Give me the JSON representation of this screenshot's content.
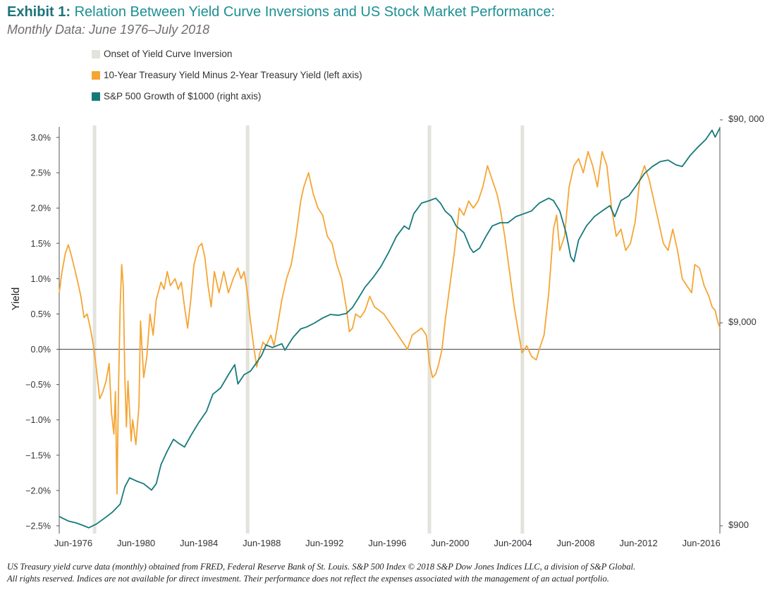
{
  "title_prefix": "Exhibit 1:",
  "title_text": "Relation Between Yield Curve Inversions and US Stock Market Performance:",
  "subtitle": "Monthly Data: June 1976–July 2018",
  "footnote_line1": "US Treasury yield curve data (monthly) obtained from FRED, Federal Reserve Bank of St. Louis. S&P 500 Index © 2018 S&P Dow Jones Indices LLC, a division of S&P Global.",
  "footnote_line2": "All rights reserved. Indices are not available for direct investment. Their performance does not reflect the expenses associated with the management of an actual portfolio.",
  "colors": {
    "inversion": "#e3e3dc",
    "spread": "#f5a534",
    "sp500": "#15797c",
    "axis": "#555555",
    "title": "#1d8f93"
  },
  "chart_data": {
    "type": "line",
    "ylabel": "Yield",
    "x_range": [
      1976.42,
      2018.5
    ],
    "x_tick_labels": [
      {
        "x": 1976.42,
        "label": "Jun-1976"
      },
      {
        "x": 1980.42,
        "label": "Jun-1980"
      },
      {
        "x": 1984.42,
        "label": "Jun-1984"
      },
      {
        "x": 1988.42,
        "label": "Jun-1988"
      },
      {
        "x": 1992.42,
        "label": "Jun-1992"
      },
      {
        "x": 1996.42,
        "label": "Jun-1996"
      },
      {
        "x": 2000.42,
        "label": "Jun-2000"
      },
      {
        "x": 2004.42,
        "label": "Jun-2004"
      },
      {
        "x": 2008.42,
        "label": "Jun-2008"
      },
      {
        "x": 2012.42,
        "label": "Jun-2012"
      },
      {
        "x": 2016.42,
        "label": "Jun-2016"
      }
    ],
    "y_left_range": [
      -2.5,
      3.0
    ],
    "y_left_ticks": [
      {
        "v": 3.0,
        "label": "3.0%"
      },
      {
        "v": 2.5,
        "label": "2.5%"
      },
      {
        "v": 2.0,
        "label": "2.0%"
      },
      {
        "v": 1.5,
        "label": "1.5%"
      },
      {
        "v": 1.0,
        "label": "1.0%"
      },
      {
        "v": 0.5,
        "label": "0.5%"
      },
      {
        "v": 0.0,
        "label": "0.0%"
      },
      {
        "v": -0.5,
        "label": "−0.5%"
      },
      {
        "v": -1.0,
        "label": "−1.0%"
      },
      {
        "v": -1.5,
        "label": "−1.5%"
      },
      {
        "v": -2.0,
        "label": "−2.0%"
      },
      {
        "v": -2.5,
        "label": "−2.5%"
      }
    ],
    "y_right_scale": "log",
    "y_right_range": [
      900,
      90000
    ],
    "y_right_ticks": [
      {
        "v": 90000,
        "label": "$90, 000"
      },
      {
        "v": 9000,
        "label": "$9,000"
      },
      {
        "v": 900,
        "label": "$900"
      }
    ],
    "zero_line": 0,
    "inversions": [
      1978.67,
      1988.42,
      2000.0,
      2005.92
    ],
    "series": [
      {
        "name": "Onset of Yield Curve Inversion",
        "kind": "vertical-bands"
      },
      {
        "name": "10-Year Treasury Yield Minus 2-Year Treasury Yield (left axis)",
        "axis": "left",
        "points": [
          [
            1976.42,
            0.8
          ],
          [
            1976.6,
            1.1
          ],
          [
            1976.8,
            1.35
          ],
          [
            1977.0,
            1.48
          ],
          [
            1977.2,
            1.32
          ],
          [
            1977.5,
            1.05
          ],
          [
            1977.8,
            0.75
          ],
          [
            1978.0,
            0.45
          ],
          [
            1978.2,
            0.5
          ],
          [
            1978.4,
            0.3
          ],
          [
            1978.6,
            0.05
          ],
          [
            1978.8,
            -0.3
          ],
          [
            1979.0,
            -0.7
          ],
          [
            1979.2,
            -0.6
          ],
          [
            1979.4,
            -0.45
          ],
          [
            1979.6,
            -0.2
          ],
          [
            1979.75,
            -0.9
          ],
          [
            1979.9,
            -1.2
          ],
          [
            1980.0,
            -0.6
          ],
          [
            1980.1,
            -2.05
          ],
          [
            1980.2,
            -0.5
          ],
          [
            1980.3,
            0.6
          ],
          [
            1980.4,
            1.2
          ],
          [
            1980.5,
            0.9
          ],
          [
            1980.6,
            -0.4
          ],
          [
            1980.7,
            -1.1
          ],
          [
            1980.8,
            -0.45
          ],
          [
            1981.0,
            -1.3
          ],
          [
            1981.1,
            -1.0
          ],
          [
            1981.3,
            -1.35
          ],
          [
            1981.5,
            -0.8
          ],
          [
            1981.6,
            0.4
          ],
          [
            1981.8,
            -0.4
          ],
          [
            1982.0,
            -0.1
          ],
          [
            1982.2,
            0.5
          ],
          [
            1982.4,
            0.2
          ],
          [
            1982.6,
            0.7
          ],
          [
            1982.9,
            0.95
          ],
          [
            1983.1,
            0.85
          ],
          [
            1983.3,
            1.1
          ],
          [
            1983.5,
            0.9
          ],
          [
            1983.8,
            1.0
          ],
          [
            1984.0,
            0.85
          ],
          [
            1984.2,
            0.95
          ],
          [
            1984.4,
            0.6
          ],
          [
            1984.6,
            0.3
          ],
          [
            1984.8,
            0.7
          ],
          [
            1985.0,
            1.2
          ],
          [
            1985.3,
            1.45
          ],
          [
            1985.5,
            1.5
          ],
          [
            1985.7,
            1.3
          ],
          [
            1985.9,
            0.9
          ],
          [
            1986.1,
            0.6
          ],
          [
            1986.3,
            1.1
          ],
          [
            1986.6,
            0.8
          ],
          [
            1986.9,
            1.1
          ],
          [
            1987.2,
            0.8
          ],
          [
            1987.5,
            1.0
          ],
          [
            1987.8,
            1.15
          ],
          [
            1988.0,
            1.0
          ],
          [
            1988.2,
            1.1
          ],
          [
            1988.4,
            0.8
          ],
          [
            1988.6,
            0.4
          ],
          [
            1988.8,
            0.05
          ],
          [
            1989.0,
            -0.25
          ],
          [
            1989.2,
            -0.05
          ],
          [
            1989.4,
            0.1
          ],
          [
            1989.6,
            0.05
          ],
          [
            1989.9,
            0.2
          ],
          [
            1990.1,
            0.05
          ],
          [
            1990.3,
            0.3
          ],
          [
            1990.6,
            0.7
          ],
          [
            1990.9,
            1.0
          ],
          [
            1991.2,
            1.2
          ],
          [
            1991.5,
            1.6
          ],
          [
            1991.8,
            2.1
          ],
          [
            1992.0,
            2.3
          ],
          [
            1992.3,
            2.5
          ],
          [
            1992.6,
            2.2
          ],
          [
            1992.9,
            2.0
          ],
          [
            1993.2,
            1.9
          ],
          [
            1993.5,
            1.6
          ],
          [
            1993.8,
            1.5
          ],
          [
            1994.1,
            1.2
          ],
          [
            1994.4,
            1.0
          ],
          [
            1994.7,
            0.6
          ],
          [
            1994.9,
            0.25
          ],
          [
            1995.1,
            0.3
          ],
          [
            1995.3,
            0.5
          ],
          [
            1995.6,
            0.45
          ],
          [
            1995.9,
            0.55
          ],
          [
            1996.2,
            0.75
          ],
          [
            1996.5,
            0.6
          ],
          [
            1996.8,
            0.55
          ],
          [
            1997.1,
            0.5
          ],
          [
            1997.4,
            0.4
          ],
          [
            1997.7,
            0.3
          ],
          [
            1998.0,
            0.2
          ],
          [
            1998.3,
            0.1
          ],
          [
            1998.6,
            0.0
          ],
          [
            1998.9,
            0.2
          ],
          [
            1999.2,
            0.25
          ],
          [
            1999.5,
            0.3
          ],
          [
            1999.8,
            0.2
          ],
          [
            2000.0,
            -0.2
          ],
          [
            2000.2,
            -0.4
          ],
          [
            2000.4,
            -0.35
          ],
          [
            2000.6,
            -0.2
          ],
          [
            2000.8,
            0.0
          ],
          [
            2001.0,
            0.4
          ],
          [
            2001.3,
            0.9
          ],
          [
            2001.6,
            1.4
          ],
          [
            2001.9,
            2.0
          ],
          [
            2002.2,
            1.9
          ],
          [
            2002.5,
            2.1
          ],
          [
            2002.8,
            2.0
          ],
          [
            2003.1,
            2.1
          ],
          [
            2003.4,
            2.3
          ],
          [
            2003.7,
            2.6
          ],
          [
            2004.0,
            2.4
          ],
          [
            2004.3,
            2.2
          ],
          [
            2004.5,
            2.0
          ],
          [
            2004.8,
            1.6
          ],
          [
            2005.1,
            1.1
          ],
          [
            2005.4,
            0.6
          ],
          [
            2005.7,
            0.2
          ],
          [
            2005.9,
            -0.05
          ],
          [
            2006.2,
            0.05
          ],
          [
            2006.5,
            -0.1
          ],
          [
            2006.8,
            -0.15
          ],
          [
            2007.0,
            0.0
          ],
          [
            2007.3,
            0.2
          ],
          [
            2007.6,
            0.8
          ],
          [
            2007.9,
            1.7
          ],
          [
            2008.1,
            1.9
          ],
          [
            2008.3,
            1.4
          ],
          [
            2008.6,
            1.6
          ],
          [
            2008.9,
            2.3
          ],
          [
            2009.2,
            2.6
          ],
          [
            2009.5,
            2.7
          ],
          [
            2009.8,
            2.5
          ],
          [
            2010.1,
            2.8
          ],
          [
            2010.4,
            2.6
          ],
          [
            2010.7,
            2.3
          ],
          [
            2011.0,
            2.8
          ],
          [
            2011.3,
            2.6
          ],
          [
            2011.6,
            2.0
          ],
          [
            2011.9,
            1.6
          ],
          [
            2012.2,
            1.7
          ],
          [
            2012.5,
            1.4
          ],
          [
            2012.8,
            1.5
          ],
          [
            2013.1,
            1.8
          ],
          [
            2013.4,
            2.4
          ],
          [
            2013.7,
            2.6
          ],
          [
            2014.0,
            2.4
          ],
          [
            2014.3,
            2.1
          ],
          [
            2014.6,
            1.8
          ],
          [
            2014.9,
            1.5
          ],
          [
            2015.2,
            1.4
          ],
          [
            2015.5,
            1.7
          ],
          [
            2015.8,
            1.4
          ],
          [
            2016.1,
            1.0
          ],
          [
            2016.4,
            0.9
          ],
          [
            2016.7,
            0.8
          ],
          [
            2016.9,
            1.2
          ],
          [
            2017.2,
            1.15
          ],
          [
            2017.5,
            0.9
          ],
          [
            2017.8,
            0.75
          ],
          [
            2018.0,
            0.6
          ],
          [
            2018.2,
            0.55
          ],
          [
            2018.35,
            0.4
          ],
          [
            2018.5,
            0.3
          ]
        ]
      },
      {
        "name": "S&P 500 Growth of $1000 (right axis)",
        "axis": "right",
        "points": [
          [
            1976.42,
            1000
          ],
          [
            1977.0,
            950
          ],
          [
            1977.5,
            930
          ],
          [
            1978.0,
            900
          ],
          [
            1978.3,
            880
          ],
          [
            1978.8,
            920
          ],
          [
            1979.3,
            980
          ],
          [
            1979.8,
            1050
          ],
          [
            1980.3,
            1150
          ],
          [
            1980.6,
            1400
          ],
          [
            1980.9,
            1550
          ],
          [
            1981.3,
            1500
          ],
          [
            1981.8,
            1450
          ],
          [
            1982.3,
            1350
          ],
          [
            1982.6,
            1450
          ],
          [
            1982.9,
            1800
          ],
          [
            1983.3,
            2100
          ],
          [
            1983.7,
            2400
          ],
          [
            1984.0,
            2300
          ],
          [
            1984.4,
            2200
          ],
          [
            1984.8,
            2500
          ],
          [
            1985.3,
            2900
          ],
          [
            1985.8,
            3300
          ],
          [
            1986.2,
            4000
          ],
          [
            1986.7,
            4300
          ],
          [
            1987.2,
            5000
          ],
          [
            1987.6,
            5600
          ],
          [
            1987.8,
            4500
          ],
          [
            1988.2,
            5000
          ],
          [
            1988.6,
            5200
          ],
          [
            1988.9,
            5600
          ],
          [
            1989.3,
            6200
          ],
          [
            1989.6,
            7000
          ],
          [
            1990.0,
            6800
          ],
          [
            1990.6,
            7100
          ],
          [
            1990.8,
            6600
          ],
          [
            1991.3,
            7600
          ],
          [
            1991.8,
            8400
          ],
          [
            1992.2,
            8600
          ],
          [
            1992.7,
            9000
          ],
          [
            1993.2,
            9500
          ],
          [
            1993.7,
            9900
          ],
          [
            1994.2,
            9800
          ],
          [
            1994.7,
            10000
          ],
          [
            1995.1,
            10700
          ],
          [
            1995.5,
            12000
          ],
          [
            1995.9,
            13500
          ],
          [
            1996.4,
            15000
          ],
          [
            1996.9,
            17000
          ],
          [
            1997.4,
            20000
          ],
          [
            1997.9,
            24000
          ],
          [
            1998.4,
            27000
          ],
          [
            1998.7,
            26000
          ],
          [
            1999.0,
            31000
          ],
          [
            1999.5,
            35000
          ],
          [
            2000.0,
            36000
          ],
          [
            2000.4,
            37000
          ],
          [
            2000.7,
            35000
          ],
          [
            2001.0,
            32000
          ],
          [
            2001.4,
            30000
          ],
          [
            2001.7,
            27000
          ],
          [
            2002.2,
            25000
          ],
          [
            2002.6,
            21000
          ],
          [
            2002.8,
            20000
          ],
          [
            2003.2,
            21000
          ],
          [
            2003.6,
            24000
          ],
          [
            2004.0,
            27000
          ],
          [
            2004.5,
            28000
          ],
          [
            2005.0,
            28000
          ],
          [
            2005.5,
            30000
          ],
          [
            2006.0,
            31000
          ],
          [
            2006.5,
            32000
          ],
          [
            2007.0,
            35000
          ],
          [
            2007.6,
            37000
          ],
          [
            2007.9,
            36000
          ],
          [
            2008.3,
            32000
          ],
          [
            2008.7,
            25000
          ],
          [
            2009.0,
            19000
          ],
          [
            2009.2,
            18000
          ],
          [
            2009.5,
            23000
          ],
          [
            2010.0,
            27000
          ],
          [
            2010.5,
            30000
          ],
          [
            2011.0,
            32000
          ],
          [
            2011.5,
            34000
          ],
          [
            2011.8,
            30000
          ],
          [
            2012.2,
            36000
          ],
          [
            2012.7,
            38000
          ],
          [
            2013.2,
            43000
          ],
          [
            2013.7,
            49000
          ],
          [
            2014.2,
            53000
          ],
          [
            2014.7,
            56000
          ],
          [
            2015.2,
            57000
          ],
          [
            2015.7,
            54000
          ],
          [
            2016.1,
            53000
          ],
          [
            2016.6,
            60000
          ],
          [
            2017.1,
            66000
          ],
          [
            2017.6,
            72000
          ],
          [
            2018.0,
            80000
          ],
          [
            2018.2,
            74000
          ],
          [
            2018.5,
            82000
          ]
        ]
      }
    ]
  }
}
